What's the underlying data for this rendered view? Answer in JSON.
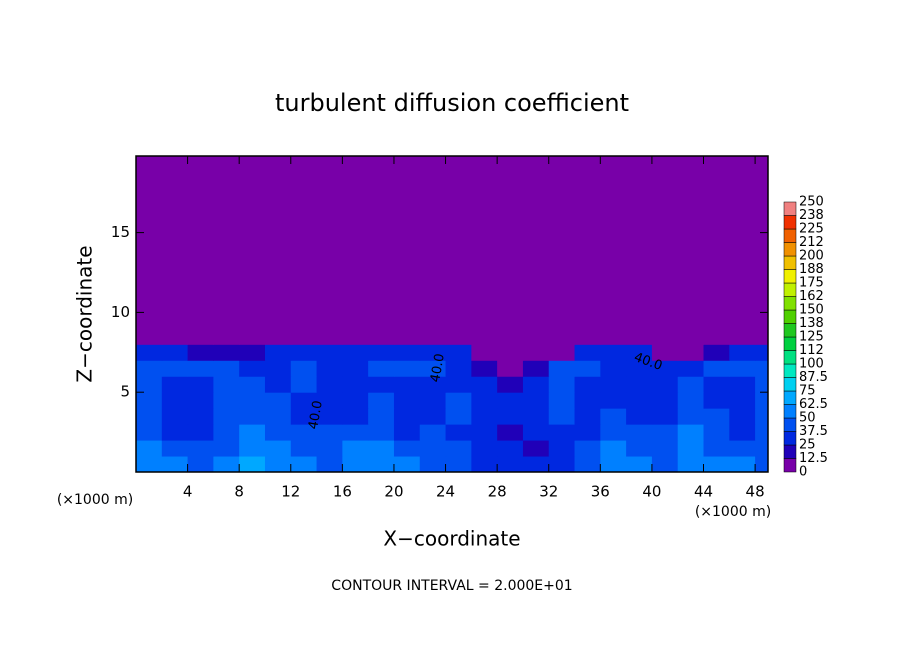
{
  "chart_data": {
    "type": "contour",
    "title": "turbulent diffusion coefficient",
    "x_label": "X−coordinate",
    "y_label": "Z−coordinate",
    "x_unit": "(×1000 m)",
    "x_unit_right": "(×1000 m)",
    "footer": "CONTOUR INTERVAL = 2.000E+01",
    "contour_labels": [
      "40.0",
      "40.0",
      "40.0"
    ],
    "xlim": [
      0,
      49
    ],
    "ylim": [
      0,
      19.8
    ],
    "xticks": [
      4,
      8,
      12,
      16,
      20,
      24,
      28,
      32,
      36,
      40,
      44,
      48
    ],
    "yticks": [
      5,
      10,
      15
    ],
    "x": [
      1,
      3,
      5,
      7,
      9,
      11,
      13,
      15,
      17,
      19,
      21,
      23,
      25,
      27,
      29,
      31,
      33,
      35,
      37,
      39,
      41,
      43,
      45,
      47,
      49
    ],
    "z": [
      0.5,
      1.5,
      2.5,
      3.5,
      4.5,
      5.5,
      6.5,
      7.5,
      8.5
    ],
    "values": [
      [
        60,
        55,
        45,
        50,
        65,
        55,
        50,
        45,
        55,
        60,
        50,
        45,
        40,
        35,
        30,
        25,
        30,
        45,
        55,
        50,
        45,
        60,
        55,
        50,
        45
      ],
      [
        50,
        45,
        40,
        45,
        55,
        50,
        45,
        40,
        50,
        55,
        45,
        40,
        38,
        30,
        25,
        20,
        30,
        40,
        50,
        45,
        40,
        55,
        45,
        40,
        45
      ],
      [
        45,
        35,
        30,
        40,
        50,
        45,
        40,
        38,
        45,
        45,
        35,
        40,
        35,
        28,
        20,
        25,
        35,
        35,
        45,
        42,
        38,
        50,
        40,
        35,
        45
      ],
      [
        40,
        30,
        28,
        38,
        48,
        42,
        35,
        30,
        30,
        45,
        30,
        35,
        40,
        30,
        25,
        30,
        40,
        30,
        40,
        35,
        35,
        45,
        38,
        30,
        40
      ],
      [
        40,
        30,
        30,
        40,
        45,
        40,
        35,
        30,
        28,
        40,
        28,
        30,
        38,
        35,
        30,
        35,
        45,
        28,
        35,
        30,
        35,
        40,
        35,
        30,
        40
      ],
      [
        45,
        35,
        35,
        42,
        40,
        35,
        40,
        32,
        30,
        35,
        32,
        35,
        35,
        30,
        20,
        30,
        45,
        35,
        30,
        30,
        35,
        38,
        35,
        35,
        45
      ],
      [
        45,
        40,
        38,
        40,
        35,
        35,
        40,
        35,
        35,
        38,
        38,
        40,
        30,
        15,
        10,
        15,
        40,
        40,
        35,
        35,
        30,
        25,
        40,
        40,
        45
      ],
      [
        35,
        30,
        20,
        15,
        20,
        30,
        35,
        35,
        30,
        35,
        35,
        35,
        25,
        5,
        0,
        5,
        10,
        30,
        30,
        25,
        10,
        5,
        20,
        30,
        35
      ],
      [
        0,
        0,
        0,
        0,
        0,
        0,
        0,
        0,
        0,
        0,
        5,
        10,
        0,
        0,
        0,
        0,
        0,
        0,
        0,
        0,
        0,
        0,
        0,
        0,
        0
      ]
    ],
    "colorbar": {
      "levels": [
        0,
        12.5,
        25,
        37.5,
        50,
        62.5,
        75,
        87.5,
        100,
        112,
        125,
        138,
        150,
        162,
        175,
        188,
        200,
        212,
        225,
        238,
        250
      ],
      "colors": [
        "#7800a8",
        "#2000b8",
        "#0028e0",
        "#0050f0",
        "#0080ff",
        "#00a8ff",
        "#00d0f0",
        "#00e8c0",
        "#00e080",
        "#00d040",
        "#20c820",
        "#50d000",
        "#80e000",
        "#c0f000",
        "#f0f000",
        "#f0c000",
        "#f09000",
        "#f06000",
        "#f03000",
        "#f08080"
      ]
    }
  }
}
